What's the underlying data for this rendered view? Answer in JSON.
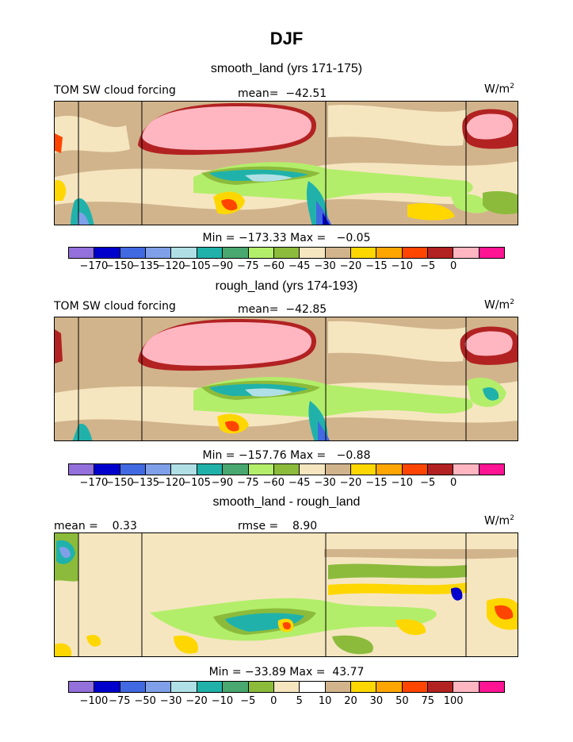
{
  "title": "DJF",
  "panels": [
    {
      "title": "smooth_land (yrs 171-175)",
      "left_label": "TOM SW cloud forcing",
      "center_label": "mean=  −42.51",
      "units": "W/m",
      "units_sup": "2",
      "minmax": "Min = −173.33 Max =   −0.05"
    },
    {
      "title": "rough_land (yrs 174-193)",
      "left_label": "TOM SW cloud forcing",
      "center_label": "mean=  −42.85",
      "units": "W/m",
      "units_sup": "2",
      "minmax": "Min = −157.76 Max =   −0.88"
    },
    {
      "title": "smooth_land - rough_land",
      "left_label": "mean =    0.33",
      "center_label": "rmse =    8.90",
      "units": "W/m",
      "units_sup": "2",
      "minmax": "Min = −33.89 Max =  43.77"
    }
  ],
  "colorbars": {
    "field": {
      "colors": [
        "#9370db",
        "#0000cd",
        "#4169e1",
        "#7fa0e8",
        "#b0e0e6",
        "#20b2aa",
        "#48a870",
        "#b3ee6a",
        "#8cbb3c",
        "#f5e6c0",
        "#d2b48c",
        "#ffd700",
        "#ffa500",
        "#ff4500",
        "#b22222",
        "#ffb6c1",
        "#ff1493"
      ],
      "labels": [
        "−170",
        "−150",
        "−135",
        "−120",
        "−105",
        "−90",
        "−75",
        "−60",
        "−45",
        "−30",
        "−20",
        "−15",
        "−10",
        "−5",
        "0"
      ]
    },
    "diff": {
      "colors": [
        "#9370db",
        "#0000cd",
        "#4169e1",
        "#7fa0e8",
        "#b0e0e6",
        "#20b2aa",
        "#48a870",
        "#8cbb3c",
        "#f5e6c0",
        "#ffffff",
        "#d2b48c",
        "#ffd700",
        "#ffa500",
        "#ff4500",
        "#b22222",
        "#ffb6c1",
        "#ff1493"
      ],
      "labels": [
        "−100",
        "−75",
        "−50",
        "−30",
        "−20",
        "−10",
        "−5",
        "0",
        "5",
        "10",
        "20",
        "30",
        "50",
        "75",
        "100"
      ]
    }
  },
  "chart_data": [
    {
      "type": "heatmap",
      "title": "smooth_land (yrs 171-175)",
      "variable": "TOM SW cloud forcing",
      "units": "W/m2",
      "mean": -42.51,
      "min": -173.33,
      "max": -0.05,
      "contour_levels": [
        -170,
        -150,
        -135,
        -120,
        -105,
        -90,
        -75,
        -60,
        -45,
        -30,
        -20,
        -15,
        -10,
        -5,
        0
      ]
    },
    {
      "type": "heatmap",
      "title": "rough_land (yrs 174-193)",
      "variable": "TOM SW cloud forcing",
      "units": "W/m2",
      "mean": -42.85,
      "min": -157.76,
      "max": -0.88,
      "contour_levels": [
        -170,
        -150,
        -135,
        -120,
        -105,
        -90,
        -75,
        -60,
        -45,
        -30,
        -20,
        -15,
        -10,
        -5,
        0
      ]
    },
    {
      "type": "heatmap",
      "title": "smooth_land - rough_land",
      "units": "W/m2",
      "mean": 0.33,
      "rmse": 8.9,
      "min": -33.89,
      "max": 43.77,
      "contour_levels": [
        -100,
        -75,
        -50,
        -30,
        -20,
        -10,
        -5,
        0,
        5,
        10,
        20,
        30,
        50,
        75,
        100
      ]
    }
  ]
}
